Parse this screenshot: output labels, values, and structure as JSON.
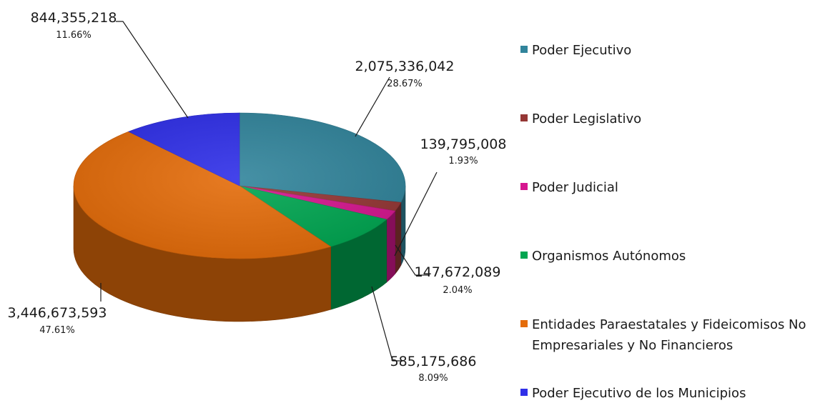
{
  "chart_data": {
    "type": "pie",
    "variant": "3d",
    "slices": [
      {
        "label": "Poder Ejecutivo",
        "value": 2075336042,
        "value_text": "2,075,336,042",
        "percent_text": "28.67%",
        "color": "#31849B"
      },
      {
        "label": "Poder Legislativo",
        "value": 139795008,
        "value_text": "139,795,008",
        "percent_text": "1.93%",
        "color": "#953735"
      },
      {
        "label": "Poder Judicial",
        "value": 147672089,
        "value_text": "147,672,089",
        "percent_text": "2.04%",
        "color": "#D6168F"
      },
      {
        "label": "Organismos Autónomos",
        "value": 585175686,
        "value_text": "585,175,686",
        "percent_text": "8.09%",
        "color": "#00A651"
      },
      {
        "label": "Entidades Paraestatales y Fideicomisos No Empresariales y No Financieros",
        "legend_lines": [
          "Entidades Paraestatales y Fideicomisos No",
          "Empresariales y No Financieros"
        ],
        "value": 3446673593,
        "value_text": "3,446,673,593",
        "percent_text": "47.61%",
        "color": "#E46C0A"
      },
      {
        "label": "Poder Ejecutivo de los Municipios",
        "value": 844355218,
        "value_text": "844,355,218",
        "percent_text": "11.66%",
        "color": "#2F2FE8"
      }
    ],
    "legend_position": "right"
  }
}
